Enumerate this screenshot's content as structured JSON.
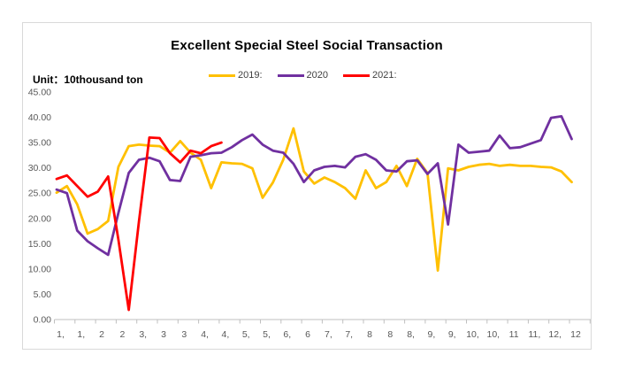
{
  "chart_data": {
    "type": "line",
    "title": "Excellent Special Steel Social Transaction",
    "unit_label": "Unit：10thousand  ton",
    "y_axis": {
      "min": 0,
      "max": 45,
      "step": 5,
      "tick_labels": [
        "45.00",
        "40.00",
        "35.00",
        "30.00",
        "25.00",
        "20.00",
        "15.00",
        "10.00",
        "5.00",
        "0.00"
      ]
    },
    "x_axis": {
      "tick_labels": [
        "1,",
        "1,",
        "2",
        "2",
        "3,",
        "3",
        "3",
        "4,",
        "4,",
        "5,",
        "5,",
        "6,",
        "6",
        "7,",
        "7,",
        "8",
        "8",
        "8,",
        "9,",
        "9,",
        "10,",
        "10,",
        "11",
        "11,",
        "12,",
        "12"
      ]
    },
    "axis_color": "#bfbfbf",
    "label_color": "#595959",
    "series": [
      {
        "name": "2019:",
        "color": "#FFC000",
        "values": [
          25.1,
          26.4,
          22.8,
          17.0,
          17.9,
          19.5,
          30.2,
          34.3,
          34.6,
          34.4,
          34.3,
          33.0,
          35.3,
          33.0,
          31.6,
          26.0,
          31.1,
          30.9,
          30.8,
          29.9,
          24.1,
          27.1,
          31.6,
          37.8,
          29.3,
          26.9,
          28.1,
          27.2,
          26.0,
          23.9,
          29.5,
          26.0,
          27.2,
          30.4,
          26.4,
          31.8,
          29.0,
          9.7,
          29.9,
          29.5,
          30.2,
          30.6,
          30.8,
          30.4,
          30.6,
          30.4,
          30.4,
          30.2,
          30.1,
          29.3,
          27.2
        ]
      },
      {
        "name": "2020",
        "color": "#7030A0",
        "values": [
          25.7,
          25.0,
          17.6,
          15.5,
          14.1,
          12.8,
          21.1,
          29.0,
          31.6,
          32.0,
          31.3,
          27.6,
          27.4,
          32.2,
          32.5,
          32.9,
          33.0,
          34.1,
          35.5,
          36.6,
          34.6,
          33.4,
          33.0,
          30.8,
          27.2,
          29.5,
          30.2,
          30.4,
          30.1,
          32.2,
          32.7,
          31.6,
          29.5,
          29.3,
          31.3,
          31.5,
          28.8,
          30.9,
          18.8,
          34.6,
          33.0,
          33.2,
          33.4,
          36.4,
          33.9,
          34.1,
          34.8,
          35.5,
          39.9,
          40.2,
          35.7
        ]
      },
      {
        "name": "2021:",
        "color": "#FF0000",
        "values": [
          27.8,
          28.5,
          26.4,
          24.3,
          25.3,
          28.3,
          15.8,
          1.9,
          19.5,
          36.0,
          35.9,
          32.9,
          31.1,
          33.4,
          32.9,
          34.3,
          35.0
        ]
      }
    ]
  }
}
